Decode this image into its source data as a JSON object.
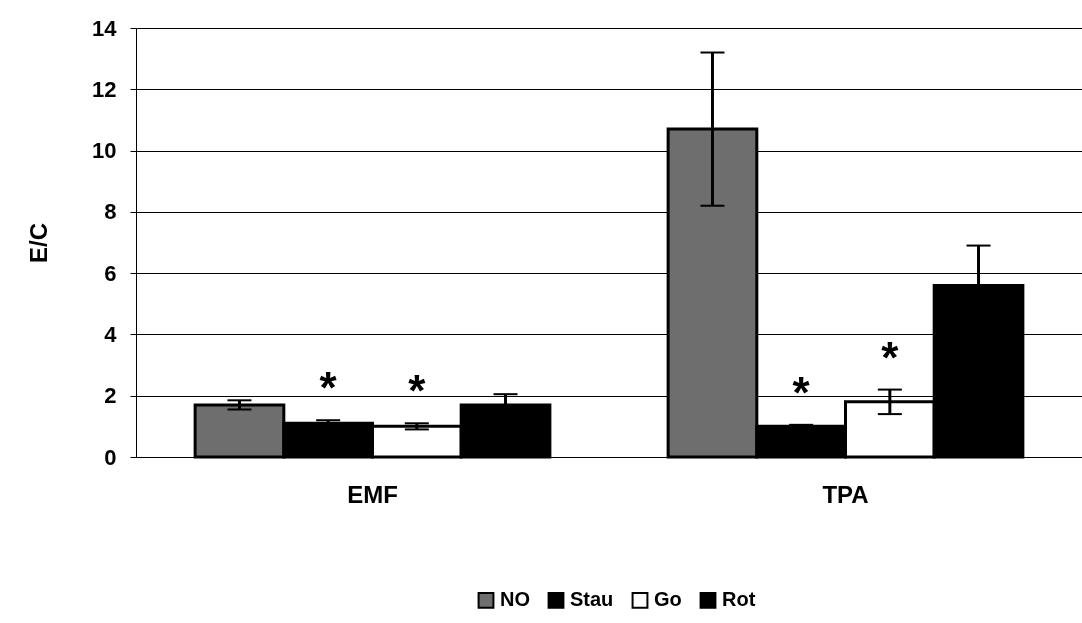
{
  "chart_data": {
    "type": "bar",
    "ylabel": "E/C",
    "categories": [
      "EMF",
      "TPA"
    ],
    "series": [
      {
        "name": "NO",
        "color": "#6e6e6e",
        "values": [
          1.7,
          10.7
        ],
        "errors": [
          0.15,
          2.5
        ],
        "value_labels": [
          null,
          null
        ]
      },
      {
        "name": "Stau",
        "color": "#000000",
        "values": [
          1.1,
          1.0
        ],
        "errors": [
          0.1,
          0.05
        ],
        "value_labels": [
          "*",
          "*"
        ]
      },
      {
        "name": "Go",
        "color": "#ffffff",
        "values": [
          1.0,
          1.8
        ],
        "errors": [
          0.1,
          0.4
        ],
        "value_labels": [
          "*",
          "*"
        ]
      },
      {
        "name": "Rot",
        "color": "#000000",
        "values": [
          1.7,
          5.6
        ],
        "errors": [
          0.35,
          1.3
        ],
        "value_labels": [
          null,
          null
        ]
      }
    ],
    "ylim": [
      0,
      14
    ],
    "yticks": [
      0,
      2,
      4,
      6,
      8,
      10,
      12,
      14
    ],
    "grid": "y",
    "legend": "bottom"
  }
}
